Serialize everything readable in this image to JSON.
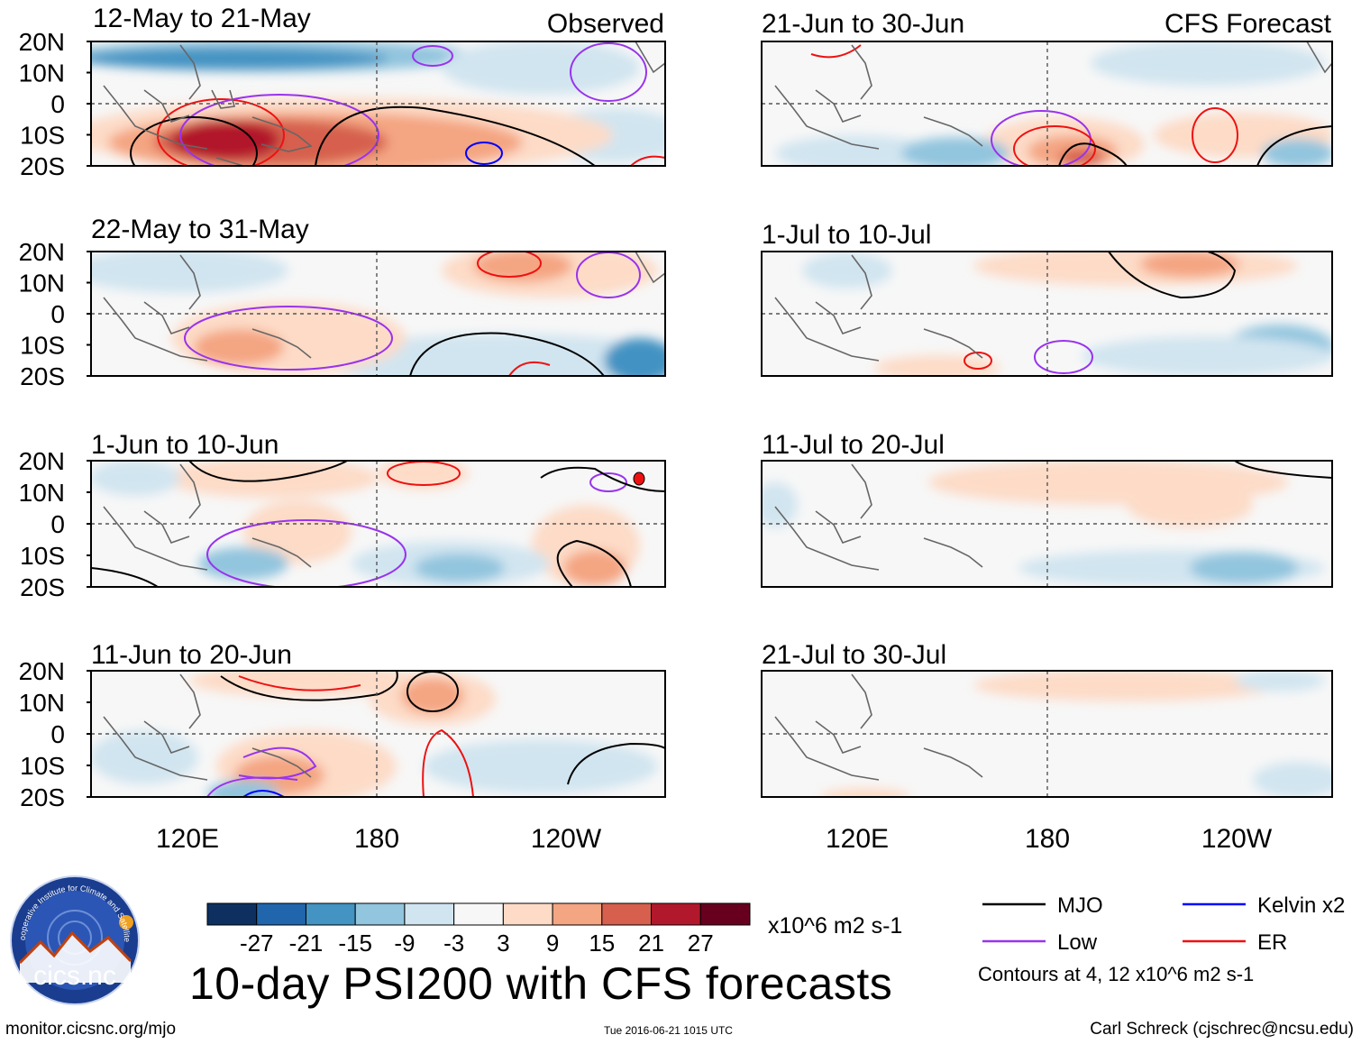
{
  "left_header": "Observed",
  "right_header": "CFS Forecast",
  "panels_left": [
    {
      "label": "12-May to 21-May"
    },
    {
      "label": "22-May to 31-May"
    },
    {
      "label": "1-Jun to 10-Jun"
    },
    {
      "label": "11-Jun to 20-Jun"
    }
  ],
  "panels_right": [
    {
      "label": "21-Jun to 30-Jun"
    },
    {
      "label": "1-Jul to 10-Jul"
    },
    {
      "label": "11-Jul to 20-Jul"
    },
    {
      "label": "21-Jul to 30-Jul"
    }
  ],
  "chart_data": {
    "type": "heatmap",
    "title": "10-day PSI200 with CFS forecasts",
    "y_tick_labels": [
      "20N",
      "10N",
      "0",
      "10S",
      "20S"
    ],
    "x_tick_labels": [
      "120E",
      "180",
      "120W"
    ],
    "colorbar": {
      "units": "x10^6 m2 s-1",
      "tick_labels": [
        "-27",
        "-21",
        "-15",
        "-9",
        "-3",
        "3",
        "9",
        "15",
        "21",
        "27"
      ],
      "colors": [
        "#0d3060",
        "#2166ac",
        "#4393c3",
        "#92c5de",
        "#d1e5f0",
        "#f7f7f7",
        "#fddbc7",
        "#f4a582",
        "#d6604d",
        "#b2182b",
        "#67001f"
      ]
    },
    "legend": [
      {
        "name": "MJO",
        "color": "#000000"
      },
      {
        "name": "Kelvin x2",
        "color": "#0000ff"
      },
      {
        "name": "Low",
        "color": "#9933ee"
      },
      {
        "name": "ER",
        "color": "#ee1111"
      }
    ],
    "contour_note": "Contours at 4, 12 x10^6 m2 s-1"
  },
  "footer": {
    "url": "monitor.cicsnc.org/mjo",
    "timestamp": "Tue 2016-06-21 1015 UTC",
    "author": "Carl Schreck (cjschrec@ncsu.edu)"
  },
  "logo": {
    "text": "cics.nc",
    "ring_text": "Cooperative Institute for Climate and Satellites"
  }
}
